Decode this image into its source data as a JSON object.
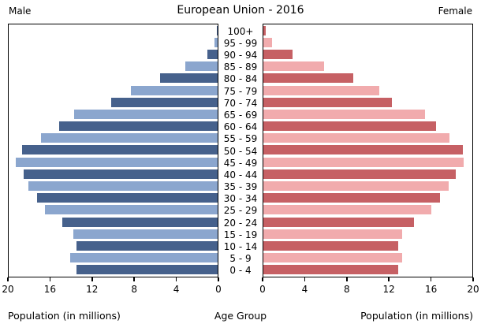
{
  "title": "European Union - 2016",
  "headers": {
    "male": "Male",
    "female": "Female"
  },
  "xlabels": {
    "left": "Population (in millions)",
    "center": "Age Group",
    "right": "Population (in millions)"
  },
  "colors": {
    "male_dark": "#46618c",
    "male_light": "#8ba6ce",
    "female_dark": "#c66064",
    "female_light": "#f1abad",
    "plot_border": "#000000",
    "background": "#ffffff"
  },
  "chart_data": {
    "type": "bar",
    "subtype": "population-pyramid",
    "title": "European Union - 2016",
    "xlabel": "Population (in millions)",
    "center_label": "Age Group",
    "xlim": [
      0,
      20
    ],
    "ticks_male": [
      20,
      16,
      12,
      8,
      4,
      0
    ],
    "ticks_female": [
      0,
      4,
      8,
      12,
      16,
      20
    ],
    "grid": false,
    "categories": [
      "100+",
      "95 - 99",
      "90 - 94",
      "85 - 89",
      "80 - 84",
      "75 - 79",
      "70 - 74",
      "65 - 69",
      "60 - 64",
      "55 - 59",
      "50 - 54",
      "45 - 49",
      "40 - 44",
      "35 - 39",
      "30 - 34",
      "25 - 29",
      "20 - 24",
      "15 - 19",
      "10 - 14",
      "5 - 9",
      "0 - 4"
    ],
    "series": [
      {
        "name": "Male",
        "values": [
          0.1,
          0.3,
          1.0,
          3.1,
          5.5,
          8.3,
          10.2,
          13.7,
          15.2,
          16.9,
          18.7,
          19.3,
          18.6,
          18.1,
          17.3,
          16.5,
          14.9,
          13.8,
          13.5,
          14.1,
          13.5
        ]
      },
      {
        "name": "Female",
        "values": [
          0.2,
          0.8,
          2.8,
          5.8,
          8.6,
          11.1,
          12.3,
          15.5,
          16.5,
          17.8,
          19.1,
          19.2,
          18.4,
          17.7,
          16.9,
          16.1,
          14.4,
          13.3,
          12.9,
          13.3,
          12.9
        ]
      }
    ]
  }
}
